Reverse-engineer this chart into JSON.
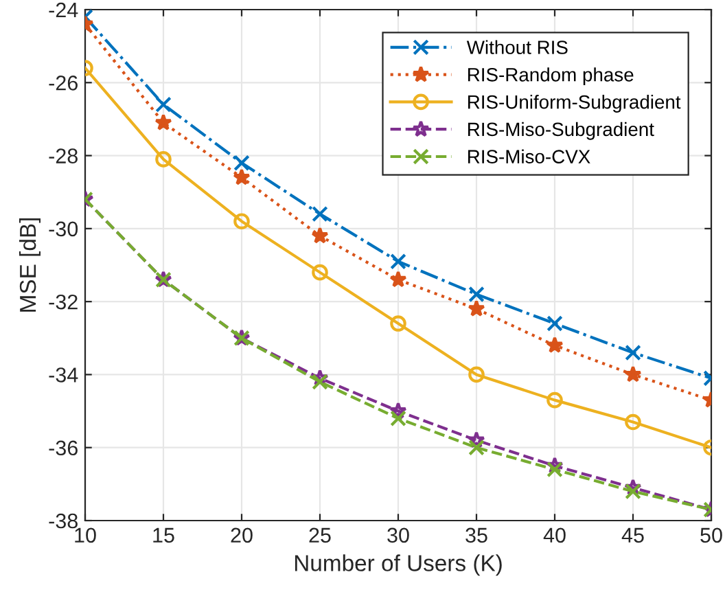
{
  "chart_data": {
    "type": "line",
    "xlabel": "Number of Users (K)",
    "ylabel": "MSE [dB]",
    "x": [
      10,
      15,
      20,
      25,
      30,
      35,
      40,
      45,
      50
    ],
    "series": [
      {
        "name": "Without RIS",
        "color": "#0072bd",
        "marker": "cross",
        "line_style": "dashdot",
        "values": [
          -24.2,
          -26.6,
          -28.2,
          -29.6,
          -30.9,
          -31.8,
          -32.6,
          -33.4,
          -34.1
        ]
      },
      {
        "name": "RIS-Random phase",
        "color": "#d95319",
        "marker": "star",
        "line_style": "dotted",
        "values": [
          -24.4,
          -27.1,
          -28.6,
          -30.2,
          -31.4,
          -32.2,
          -33.2,
          -34.0,
          -34.7
        ]
      },
      {
        "name": "RIS-Uniform-Subgradient",
        "color": "#edb120",
        "marker": "circle",
        "line_style": "solid",
        "values": [
          -25.6,
          -28.1,
          -29.8,
          -31.2,
          -32.6,
          -34.0,
          -34.7,
          -35.3,
          -36.0
        ]
      },
      {
        "name": "RIS-Miso-Subgradient",
        "color": "#7e2f8e",
        "marker": "star",
        "line_style": "dashed",
        "values": [
          -29.2,
          -31.4,
          -33.0,
          -34.1,
          -35.0,
          -35.8,
          -36.5,
          -37.1,
          -37.7
        ]
      },
      {
        "name": "RIS-Miso-CVX",
        "color": "#77ac30",
        "marker": "cross",
        "line_style": "dashed",
        "values": [
          -29.2,
          -31.4,
          -33.0,
          -34.2,
          -35.2,
          -36.0,
          -36.6,
          -37.2,
          -37.7
        ]
      }
    ],
    "xlim": [
      10,
      50
    ],
    "xticks": [
      10,
      15,
      20,
      25,
      30,
      35,
      40,
      45,
      50
    ],
    "ylim": [
      -38,
      -24
    ],
    "yticks": [
      -38,
      -36,
      -34,
      -32,
      -30,
      -28,
      -26,
      -24
    ],
    "grid": true,
    "legend": "top right"
  }
}
